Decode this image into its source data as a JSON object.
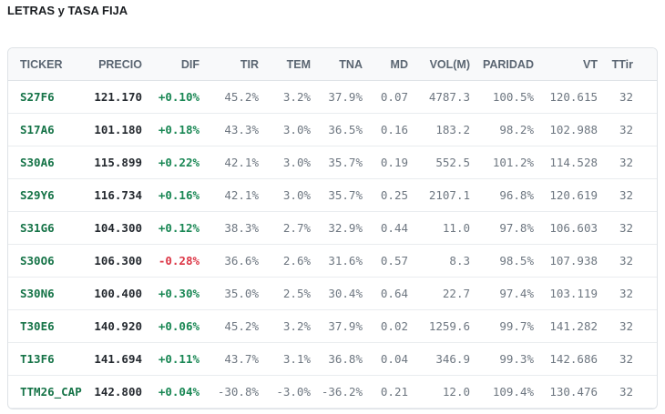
{
  "page": {
    "title": "LETRAS y TASA FIJA"
  },
  "colors": {
    "ticker_green": "#157347",
    "positive_green": "#198754",
    "negative_red": "#dc3545",
    "header_bg": "#f8f9fa",
    "header_text": "#5b6672",
    "muted_number": "#6e7781",
    "strong_number": "#24292f",
    "border": "#dee2e6"
  },
  "table": {
    "columns": [
      {
        "key": "ticker",
        "label": "TICKER"
      },
      {
        "key": "precio",
        "label": "PRECIO"
      },
      {
        "key": "dif",
        "label": "DIF"
      },
      {
        "key": "tir",
        "label": "TIR"
      },
      {
        "key": "tem",
        "label": "TEM"
      },
      {
        "key": "tna",
        "label": "TNA"
      },
      {
        "key": "md",
        "label": "MD"
      },
      {
        "key": "vol",
        "label": "VOL(M)"
      },
      {
        "key": "paridad",
        "label": "PARIDAD"
      },
      {
        "key": "vt",
        "label": "VT"
      },
      {
        "key": "ttir",
        "label": "TTir"
      }
    ],
    "rows": [
      {
        "ticker": "S27F6",
        "precio": "121.170",
        "dif": "+0.10%",
        "tir": "45.2%",
        "tem": "3.2%",
        "tna": "37.9%",
        "md": "0.07",
        "vol": "4787.3",
        "paridad": "100.5%",
        "vt": "120.615",
        "ttir": "32"
      },
      {
        "ticker": "S17A6",
        "precio": "101.180",
        "dif": "+0.18%",
        "tir": "43.3%",
        "tem": "3.0%",
        "tna": "36.5%",
        "md": "0.16",
        "vol": "183.2",
        "paridad": "98.2%",
        "vt": "102.988",
        "ttir": "32"
      },
      {
        "ticker": "S30A6",
        "precio": "115.899",
        "dif": "+0.22%",
        "tir": "42.1%",
        "tem": "3.0%",
        "tna": "35.7%",
        "md": "0.19",
        "vol": "552.5",
        "paridad": "101.2%",
        "vt": "114.528",
        "ttir": "32"
      },
      {
        "ticker": "S29Y6",
        "precio": "116.734",
        "dif": "+0.16%",
        "tir": "42.1%",
        "tem": "3.0%",
        "tna": "35.7%",
        "md": "0.25",
        "vol": "2107.1",
        "paridad": "96.8%",
        "vt": "120.619",
        "ttir": "32"
      },
      {
        "ticker": "S31G6",
        "precio": "104.300",
        "dif": "+0.12%",
        "tir": "38.3%",
        "tem": "2.7%",
        "tna": "32.9%",
        "md": "0.44",
        "vol": "11.0",
        "paridad": "97.8%",
        "vt": "106.603",
        "ttir": "32"
      },
      {
        "ticker": "S30O6",
        "precio": "106.300",
        "dif": "-0.28%",
        "tir": "36.6%",
        "tem": "2.6%",
        "tna": "31.6%",
        "md": "0.57",
        "vol": "8.3",
        "paridad": "98.5%",
        "vt": "107.938",
        "ttir": "32"
      },
      {
        "ticker": "S30N6",
        "precio": "100.400",
        "dif": "+0.30%",
        "tir": "35.0%",
        "tem": "2.5%",
        "tna": "30.4%",
        "md": "0.64",
        "vol": "22.7",
        "paridad": "97.4%",
        "vt": "103.119",
        "ttir": "32"
      },
      {
        "ticker": "T30E6",
        "precio": "140.920",
        "dif": "+0.06%",
        "tir": "45.2%",
        "tem": "3.2%",
        "tna": "37.9%",
        "md": "0.02",
        "vol": "1259.6",
        "paridad": "99.7%",
        "vt": "141.282",
        "ttir": "32"
      },
      {
        "ticker": "T13F6",
        "precio": "141.694",
        "dif": "+0.11%",
        "tir": "43.7%",
        "tem": "3.1%",
        "tna": "36.8%",
        "md": "0.04",
        "vol": "346.9",
        "paridad": "99.3%",
        "vt": "142.686",
        "ttir": "32"
      },
      {
        "ticker": "TTM26_CAP",
        "precio": "142.800",
        "dif": "+0.04%",
        "tir": "-30.8%",
        "tem": "-3.0%",
        "tna": "-36.2%",
        "md": "0.21",
        "vol": "12.0",
        "paridad": "109.4%",
        "vt": "130.476",
        "ttir": "32"
      }
    ],
    "column_widths": {
      "ticker": 87,
      "precio": 60,
      "dif": 63,
      "tir": 65,
      "tem": 57,
      "tna": 57,
      "md": 50,
      "vol": 68,
      "paridad": 70,
      "vt": 70,
      "ttir": 67
    }
  }
}
